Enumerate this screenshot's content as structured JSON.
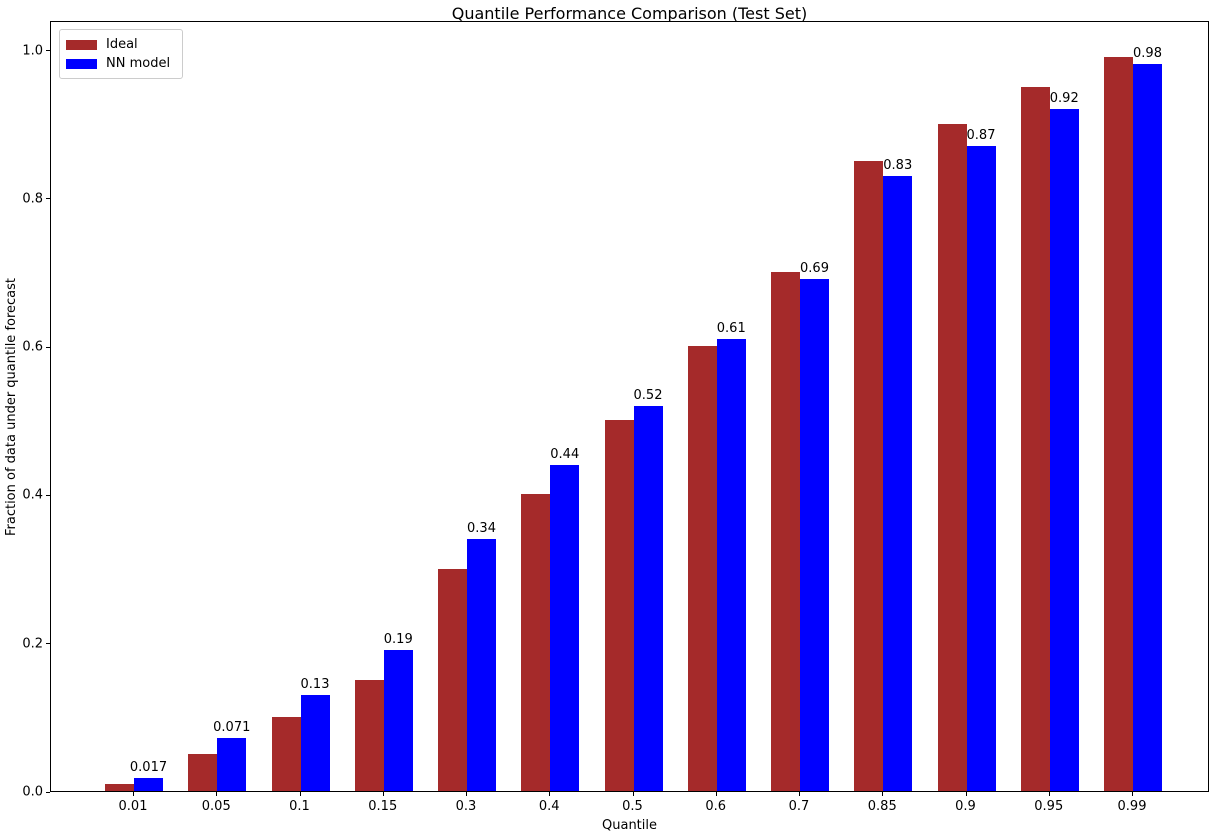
{
  "chart_data": {
    "type": "bar",
    "title": "Quantile Performance Comparison (Test Set)",
    "xlabel": "Quantile",
    "ylabel": "Fraction of data under quantile forecast",
    "categories": [
      "0.01",
      "0.05",
      "0.1",
      "0.15",
      "0.3",
      "0.4",
      "0.5",
      "0.6",
      "0.7",
      "0.85",
      "0.9",
      "0.95",
      "0.99"
    ],
    "series": [
      {
        "name": "Ideal",
        "color": "#a52a2a",
        "values": [
          0.01,
          0.05,
          0.1,
          0.15,
          0.3,
          0.4,
          0.5,
          0.6,
          0.7,
          0.85,
          0.9,
          0.95,
          0.99
        ]
      },
      {
        "name": "NN model",
        "color": "#0000ff",
        "values": [
          0.017,
          0.071,
          0.13,
          0.19,
          0.34,
          0.44,
          0.52,
          0.61,
          0.69,
          0.83,
          0.87,
          0.92,
          0.98
        ],
        "bar_labels": [
          "0.017",
          "0.071",
          "0.13",
          "0.19",
          "0.34",
          "0.44",
          "0.52",
          "0.61",
          "0.69",
          "0.83",
          "0.87",
          "0.92",
          "0.98"
        ]
      }
    ],
    "yticks": [
      0.0,
      0.2,
      0.4,
      0.6,
      0.8,
      1.0
    ],
    "ytick_labels": [
      "0.0",
      "0.2",
      "0.4",
      "0.6",
      "0.8",
      "1.0"
    ],
    "ylim": [
      0,
      1.04
    ],
    "grid": false,
    "legend_position": "upper left"
  }
}
